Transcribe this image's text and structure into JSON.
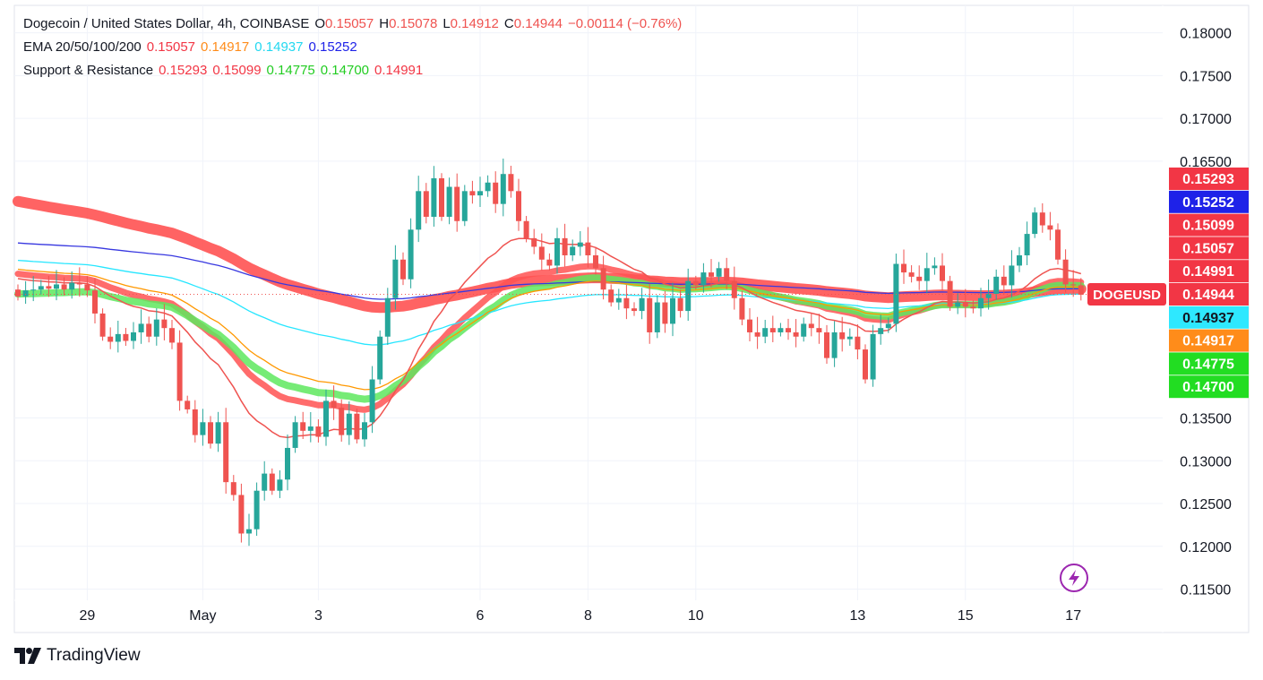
{
  "header": {
    "pair": "Dogecoin / United States Dollar, 4h, COINBASE",
    "o_label": "O",
    "o": "0.15057",
    "h_label": "H",
    "h": "0.15078",
    "l_label": "L",
    "l": "0.14912",
    "c_label": "C",
    "c": "0.14944",
    "change": "−0.00114 (−0.76%)",
    "ema_label": "EMA 20/50/100/200",
    "ema_values": [
      "0.15057",
      "0.14917",
      "0.14937",
      "0.15252"
    ],
    "sr_label": "Support & Resistance",
    "sr_values": [
      "0.15293",
      "0.15099",
      "0.14775",
      "0.14700",
      "0.14991"
    ]
  },
  "colors": {
    "up": "#26a69a",
    "down": "#ef5350",
    "ema20": "#ef5350",
    "ema50": "#ff9800",
    "ema100": "#26e6ff",
    "ema200": "#3838e0",
    "resistance": "#ff5252",
    "support": "#5ee85e"
  },
  "brand": {
    "name": "TradingView"
  },
  "chart_data": {
    "type": "candlestick",
    "y_ticks": [
      "0.18000",
      "0.17500",
      "0.17000",
      "0.16500",
      "0.13500",
      "0.13000",
      "0.12500",
      "0.12000",
      "0.11500"
    ],
    "ylim": [
      0.1137,
      0.1832
    ],
    "x_ticks": [
      {
        "label": "29",
        "index": 9
      },
      {
        "label": "May",
        "index": 24
      },
      {
        "label": "3",
        "index": 39
      },
      {
        "label": "6",
        "index": 60
      },
      {
        "label": "8",
        "index": 74
      },
      {
        "label": "10",
        "index": 88
      },
      {
        "label": "13",
        "index": 109
      },
      {
        "label": "15",
        "index": 123
      },
      {
        "label": "17",
        "index": 137
      }
    ],
    "price_labels": [
      {
        "text": "0.15293",
        "value": 0.15293,
        "color": "#f23645"
      },
      {
        "text": "0.15252",
        "value": 0.15252,
        "color": "#1e22e8"
      },
      {
        "text": "0.15099",
        "value": 0.15099,
        "color": "#f23645"
      },
      {
        "text": "0.15057",
        "value": 0.15057,
        "color": "#f23645"
      },
      {
        "text": "0.14991",
        "value": 0.14991,
        "color": "#f23645"
      },
      {
        "text": "0.14944",
        "value": 0.14944,
        "color": "#f23645",
        "symbol": "DOGEUSD"
      },
      {
        "text": "0.14937",
        "value": 0.14937,
        "color": "#2ee8ff"
      },
      {
        "text": "0.14917",
        "value": 0.14917,
        "color": "#ff8c1a"
      },
      {
        "text": "0.14775",
        "value": 0.14775,
        "color": "#22dd22"
      },
      {
        "text": "0.14700",
        "value": 0.147,
        "color": "#22dd22"
      }
    ],
    "last_price": 0.14944,
    "closes": [
      0.1492,
      0.1499,
      0.15,
      0.1504,
      0.1501,
      0.1506,
      0.15,
      0.1508,
      0.1506,
      0.1499,
      0.1472,
      0.1445,
      0.1439,
      0.1448,
      0.144,
      0.145,
      0.146,
      0.1445,
      0.1465,
      0.1455,
      0.1438,
      0.137,
      0.136,
      0.133,
      0.1345,
      0.132,
      0.1345,
      0.1275,
      0.126,
      0.1215,
      0.122,
      0.1265,
      0.1285,
      0.1265,
      0.1278,
      0.1315,
      0.1345,
      0.1335,
      0.134,
      0.1328,
      0.137,
      0.1362,
      0.133,
      0.1355,
      0.1325,
      0.1345,
      0.1395,
      0.1445,
      0.149,
      0.1535,
      0.1512,
      0.157,
      0.1615,
      0.1585,
      0.163,
      0.1585,
      0.162,
      0.158,
      0.1615,
      0.161,
      0.1615,
      0.1625,
      0.16,
      0.1635,
      0.1615,
      0.158,
      0.156,
      0.155,
      0.1535,
      0.1528,
      0.156,
      0.154,
      0.155,
      0.1555,
      0.154,
      0.1525,
      0.15,
      0.1485,
      0.149,
      0.1478,
      0.1475,
      0.149,
      0.145,
      0.1485,
      0.146,
      0.149,
      0.1475,
      0.151,
      0.1505,
      0.152,
      0.1515,
      0.1525,
      0.151,
      0.149,
      0.1465,
      0.145,
      0.1445,
      0.1455,
      0.145,
      0.1455,
      0.145,
      0.1445,
      0.146,
      0.1455,
      0.145,
      0.142,
      0.145,
      0.1442,
      0.1445,
      0.143,
      0.1395,
      0.1448,
      0.1455,
      0.146,
      0.153,
      0.152,
      0.1515,
      0.151,
      0.1525,
      0.1528,
      0.151,
      0.148,
      0.1485,
      0.148,
      0.1478,
      0.149,
      0.1495,
      0.1515,
      0.1505,
      0.1528,
      0.154,
      0.1565,
      0.159,
      0.1575,
      0.157,
      0.1535,
      0.1506,
      0.1505,
      0.1494
    ]
  }
}
